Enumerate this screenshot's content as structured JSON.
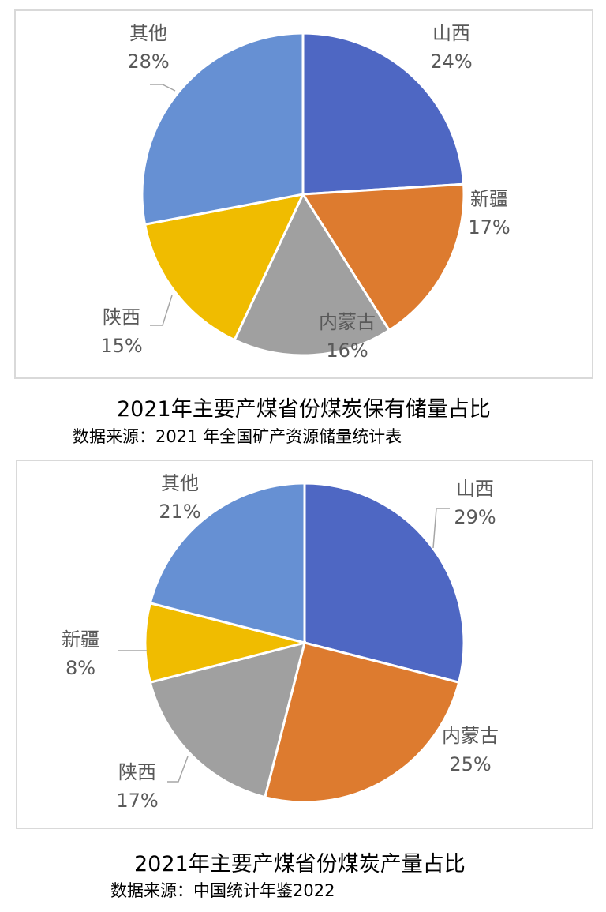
{
  "chart_data": [
    {
      "type": "pie",
      "title": "2021年主要产煤省份煤炭保有储量占比",
      "source": "数据来源：2021 年全国矿产资源储量统计表",
      "slices": [
        {
          "name": "山西",
          "label": "24%",
          "value": 24,
          "color": "#4e67c3"
        },
        {
          "name": "新疆",
          "label": "17%",
          "value": 17,
          "color": "#dd7b2f"
        },
        {
          "name": "内蒙古",
          "label": "16%",
          "value": 16,
          "color": "#a0a0a0"
        },
        {
          "name": "陕西",
          "label": "15%",
          "value": 15,
          "color": "#f0bc00"
        },
        {
          "name": "其他",
          "label": "28%",
          "value": 28,
          "color": "#6690d3"
        }
      ]
    },
    {
      "type": "pie",
      "title": "2021年主要产煤省份煤炭产量占比",
      "source": "数据来源：中国统计年鉴2022",
      "slices": [
        {
          "name": "山西",
          "label": "29%",
          "value": 29,
          "color": "#4e67c3"
        },
        {
          "name": "内蒙古",
          "label": "25%",
          "value": 25,
          "color": "#dd7b2f"
        },
        {
          "name": "陕西",
          "label": "17%",
          "value": 17,
          "color": "#a0a0a0"
        },
        {
          "name": "新疆",
          "label": "8%",
          "value": 8,
          "color": "#f0bc00"
        },
        {
          "name": "其他",
          "label": "21%",
          "value": 21,
          "color": "#6690d3"
        }
      ]
    }
  ]
}
